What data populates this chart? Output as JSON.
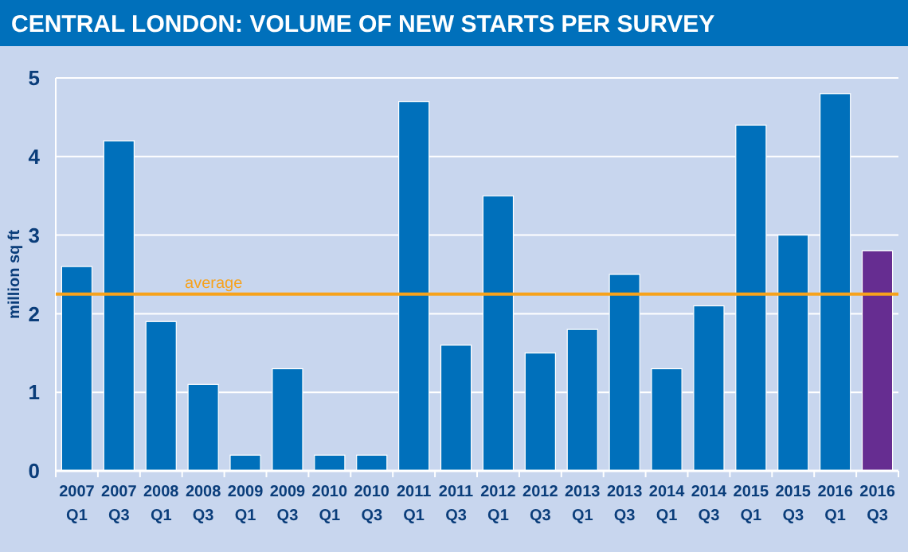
{
  "chart_data": {
    "type": "bar",
    "title": "CENTRAL LONDON: VOLUME OF NEW STARTS PER SURVEY",
    "ylabel": "million sq ft",
    "categories": [
      "2007 Q1",
      "2007 Q3",
      "2008 Q1",
      "2008 Q3",
      "2009 Q1",
      "2009 Q3",
      "2010 Q1",
      "2010 Q3",
      "2011 Q1",
      "2011 Q3",
      "2012 Q1",
      "2012 Q3",
      "2013 Q1",
      "2013 Q3",
      "2014 Q1",
      "2014 Q3",
      "2015 Q1",
      "2015 Q3",
      "2016 Q1",
      "2016 Q3"
    ],
    "values": [
      2.6,
      4.2,
      1.9,
      1.1,
      0.2,
      1.3,
      0.2,
      0.2,
      4.7,
      1.6,
      3.5,
      1.5,
      1.8,
      2.5,
      1.3,
      2.1,
      4.4,
      3.0,
      4.8,
      2.8
    ],
    "colors": [
      "#0070bb",
      "#0070bb",
      "#0070bb",
      "#0070bb",
      "#0070bb",
      "#0070bb",
      "#0070bb",
      "#0070bb",
      "#0070bb",
      "#0070bb",
      "#0070bb",
      "#0070bb",
      "#0070bb",
      "#0070bb",
      "#0070bb",
      "#0070bb",
      "#0070bb",
      "#0070bb",
      "#0070bb",
      "#662d91"
    ],
    "ylim": [
      0,
      5
    ],
    "yticks": [
      0,
      1,
      2,
      3,
      4,
      5
    ],
    "grid": "y",
    "ref_lines": [
      {
        "axis": "y",
        "value": 2.25,
        "label": "average",
        "color": "#f7a21b"
      }
    ]
  }
}
